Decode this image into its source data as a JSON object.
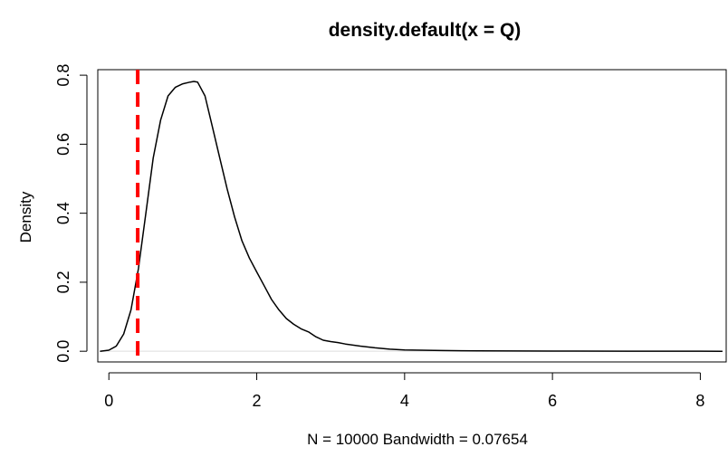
{
  "chart_data": {
    "type": "line",
    "title": "density.default(x = Q)",
    "xlabel": "N = 10000   Bandwidth = 0.07654",
    "ylabel": "Density",
    "xlim": [
      -0.15,
      8.35
    ],
    "ylim": [
      -0.031,
      0.816
    ],
    "x_ticks": [
      0,
      2,
      4,
      6,
      8
    ],
    "x_tick_labels": [
      "0",
      "2",
      "4",
      "6",
      "8"
    ],
    "y_ticks": [
      0.0,
      0.2,
      0.4,
      0.6,
      0.8
    ],
    "y_tick_labels": [
      "0.0",
      "0.2",
      "0.4",
      "0.6",
      "0.8"
    ],
    "grid": false,
    "series": [
      {
        "color": "#000000",
        "x": [
          -0.12,
          0.0,
          0.1,
          0.2,
          0.3,
          0.4,
          0.5,
          0.6,
          0.7,
          0.8,
          0.9,
          1.0,
          1.1,
          1.15,
          1.2,
          1.3,
          1.4,
          1.5,
          1.6,
          1.7,
          1.8,
          1.9,
          2.0,
          2.1,
          2.2,
          2.3,
          2.4,
          2.5,
          2.6,
          2.7,
          2.8,
          2.9,
          3.0,
          3.1,
          3.2,
          3.4,
          3.6,
          3.8,
          4.0,
          4.5,
          5.0,
          6.0,
          7.0,
          8.0,
          8.3
        ],
        "y": [
          0.0,
          0.003,
          0.015,
          0.05,
          0.12,
          0.24,
          0.4,
          0.56,
          0.67,
          0.74,
          0.765,
          0.775,
          0.78,
          0.782,
          0.78,
          0.74,
          0.65,
          0.56,
          0.47,
          0.39,
          0.32,
          0.27,
          0.23,
          0.19,
          0.15,
          0.12,
          0.095,
          0.078,
          0.065,
          0.056,
          0.042,
          0.032,
          0.028,
          0.025,
          0.021,
          0.015,
          0.01,
          0.006,
          0.004,
          0.002,
          0.001,
          0.0005,
          0.0003,
          0.0002,
          0.0
        ]
      }
    ],
    "reference_lines": [
      {
        "orientation": "vertical",
        "x": 0.39,
        "color": "#ff0000",
        "style": "dashed"
      }
    ],
    "zero_line_color": "#dddddd"
  }
}
